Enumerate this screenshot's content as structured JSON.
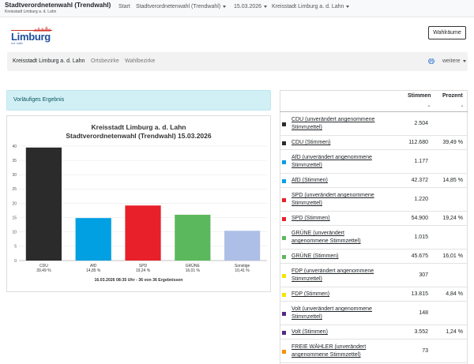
{
  "topbar": {
    "title": "Stadtverordnetenwahl (Trendwahl)",
    "subtitle": "Kreisstadt Limburg a. d. Lahn",
    "nav": [
      {
        "label": "Start",
        "dropdown": false
      },
      {
        "label": "Stadtverordnetenwahl (Trendwahl)",
        "dropdown": true
      },
      {
        "label": "15.03.2026",
        "dropdown": true
      },
      {
        "label": "Kreisstadt Limburg a. d. Lahn",
        "dropdown": true
      }
    ]
  },
  "logo": {
    "text": "Limburg",
    "subtext": "a.d. Lahn",
    "icon": "limburg-skyline-icon"
  },
  "header_button": "Wahlräume",
  "subnav": {
    "items": [
      "Kreisstadt Limburg a. d. Lahn",
      "Ortsbezirke",
      "Wahlbezirke"
    ],
    "print_icon": "printer-icon",
    "more": "weitere"
  },
  "alert": "Vorläufiges Ergebnis",
  "chart": {
    "title1": "Kreisstadt Limburg a. d. Lahn",
    "title2": "Stadtverordnetenwahl (Trendwahl) 15.03.2026",
    "footer": "16.03.2026 08:35 Uhr - 36 von 36 Ergebnissen"
  },
  "chart_data": {
    "type": "bar",
    "title": "Kreisstadt Limburg a. d. Lahn – Stadtverordnetenwahl (Trendwahl) 15.03.2026",
    "categories": [
      "CDU",
      "AfD",
      "SPD",
      "GRÜNE",
      "Sonstige"
    ],
    "values": [
      39.49,
      14.85,
      19.24,
      16.01,
      10.41
    ],
    "value_labels": [
      "39,49 %",
      "14,85 %",
      "19,24 %",
      "16,01 %",
      "10,41 %"
    ],
    "colors": [
      "#2b2b2b",
      "#00a0e2",
      "#e8202a",
      "#5bb85d",
      "#adbfe6"
    ],
    "ylim": [
      0,
      40
    ],
    "yticks": [
      0,
      5,
      10,
      15,
      20,
      25,
      30,
      35,
      40
    ],
    "grid": true
  },
  "table": {
    "col_stimmen": "Stimmen",
    "col_prozent": "Prozent",
    "rows": [
      {
        "label": "CDU (unverändert angenommene Stimmzettel)",
        "stimmen": "2.504",
        "prozent": "",
        "color": "#2b2b2b"
      },
      {
        "label": "CDU (Stimmen)",
        "stimmen": "112.680",
        "prozent": "39,49 %",
        "color": "#2b2b2b"
      },
      {
        "label": "AfD (unverändert angenommene Stimmzettel)",
        "stimmen": "1.177",
        "prozent": "",
        "color": "#00a0e2"
      },
      {
        "label": "AfD (Stimmen)",
        "stimmen": "42.372",
        "prozent": "14,85 %",
        "color": "#00a0e2"
      },
      {
        "label": "SPD (unverändert angenommene Stimmzettel)",
        "stimmen": "1.220",
        "prozent": "",
        "color": "#e8202a"
      },
      {
        "label": "SPD (Stimmen)",
        "stimmen": "54.900",
        "prozent": "19,24 %",
        "color": "#e8202a"
      },
      {
        "label": "GRÜNE (unverändert angenommene Stimmzettel)",
        "stimmen": "1.015",
        "prozent": "",
        "color": "#5bb85d"
      },
      {
        "label": "GRÜNE (Stimmen)",
        "stimmen": "45.675",
        "prozent": "16,01 %",
        "color": "#5bb85d"
      },
      {
        "label": "FDP (unverändert angenommene Stimmzettel)",
        "stimmen": "307",
        "prozent": "",
        "color": "#f2e600"
      },
      {
        "label": "FDP (Stimmen)",
        "stimmen": "13.815",
        "prozent": "4,84 %",
        "color": "#f2e600"
      },
      {
        "label": "Volt (unverändert angenommene Stimmzettel)",
        "stimmen": "148",
        "prozent": "",
        "color": "#562883"
      },
      {
        "label": "Volt (Stimmen)",
        "stimmen": "3.552",
        "prozent": "1,24 %",
        "color": "#562883"
      },
      {
        "label": "FREIE WÄHLER (unverändert angenommene Stimmzettel)",
        "stimmen": "73",
        "prozent": "",
        "color": "#f39200"
      }
    ]
  }
}
